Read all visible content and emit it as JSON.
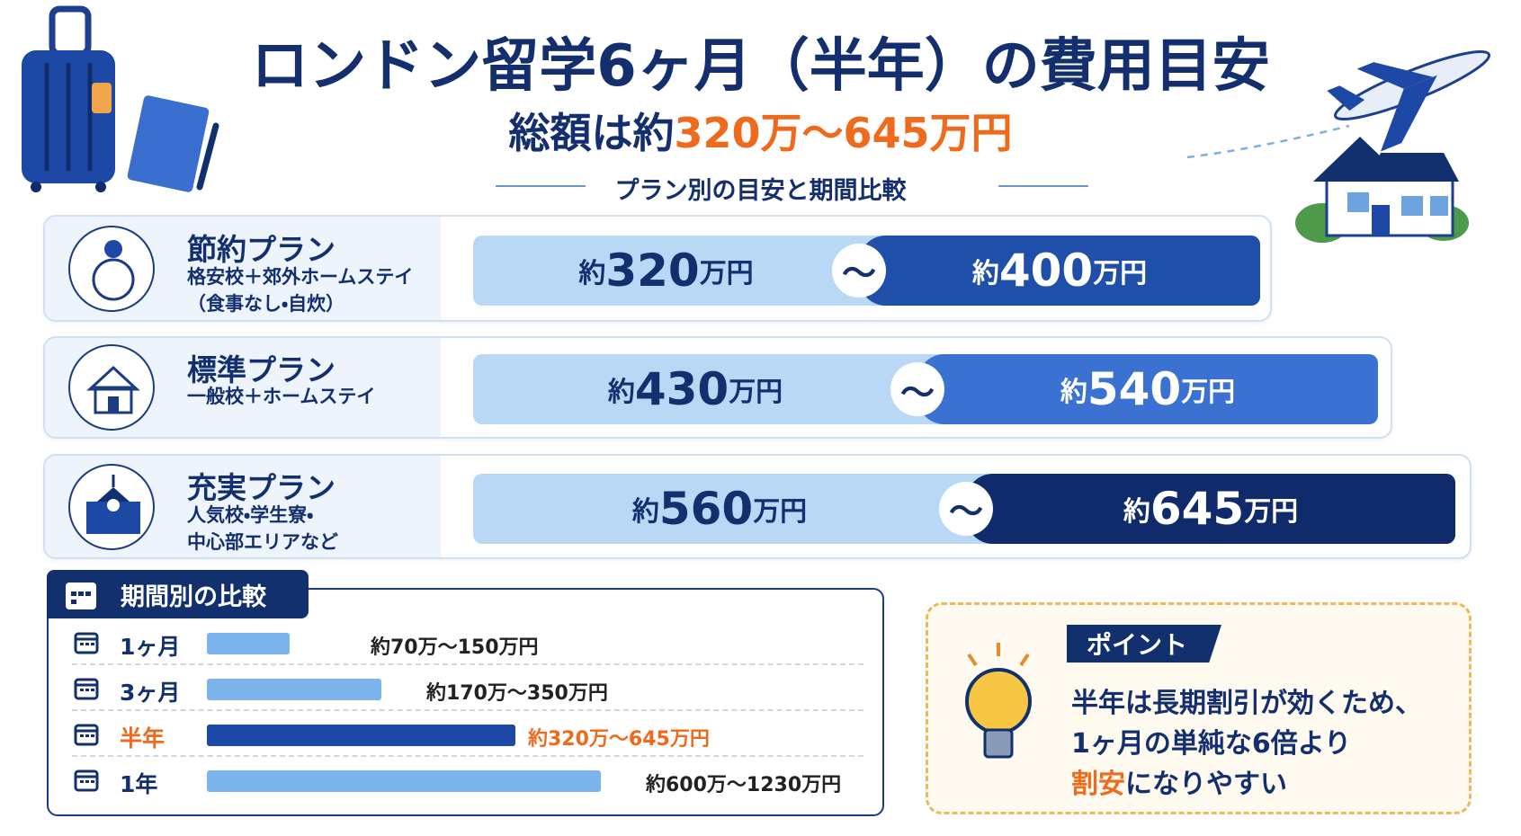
{
  "header": {
    "title": "ロンドン留学6ヶ月（半年）の費用目安",
    "subtitle_prefix": "総額は約",
    "subtitle_amount": "320万～645万円",
    "section_label": "プラン別の目安と期間比較"
  },
  "plans": [
    {
      "name": "節約プラン",
      "description": [
        "格安校＋郊外ホームステイ",
        "（食事なし・自炊）"
      ],
      "min": {
        "prefix": "約",
        "amount": "320",
        "unit": "万円"
      },
      "separator": "～",
      "max": {
        "prefix": "約",
        "amount": "400",
        "unit": "万円"
      }
    },
    {
      "name": "標準プラン",
      "description": [
        "一般校＋ホームステイ"
      ],
      "min": {
        "prefix": "約",
        "amount": "430",
        "unit": "万円"
      },
      "separator": "～",
      "max": {
        "prefix": "約",
        "amount": "540",
        "unit": "万円"
      }
    },
    {
      "name": "充実プラン",
      "description": [
        "人気校・学生寮・",
        "中心部エリアなど"
      ],
      "min": {
        "prefix": "約",
        "amount": "560",
        "unit": "万円"
      },
      "separator": "～",
      "max": {
        "prefix": "約",
        "amount": "645",
        "unit": "万円"
      }
    }
  ],
  "periods": {
    "title": "期間別の比較",
    "rows": [
      {
        "label": "1ヶ月",
        "range": "約70万～150万円"
      },
      {
        "label": "3ヶ月",
        "range": "約170万～350万円"
      },
      {
        "label": "半年",
        "range": "約320万～645万円"
      },
      {
        "label": "1年",
        "range": "約600万～1230万円"
      }
    ]
  },
  "point": {
    "tag": "ポイント",
    "lines": [
      "半年は長期割引が効くため、",
      "1ヶ月の単純な6倍より"
    ],
    "highlight": "割安",
    "rest": "になりやすい"
  }
}
